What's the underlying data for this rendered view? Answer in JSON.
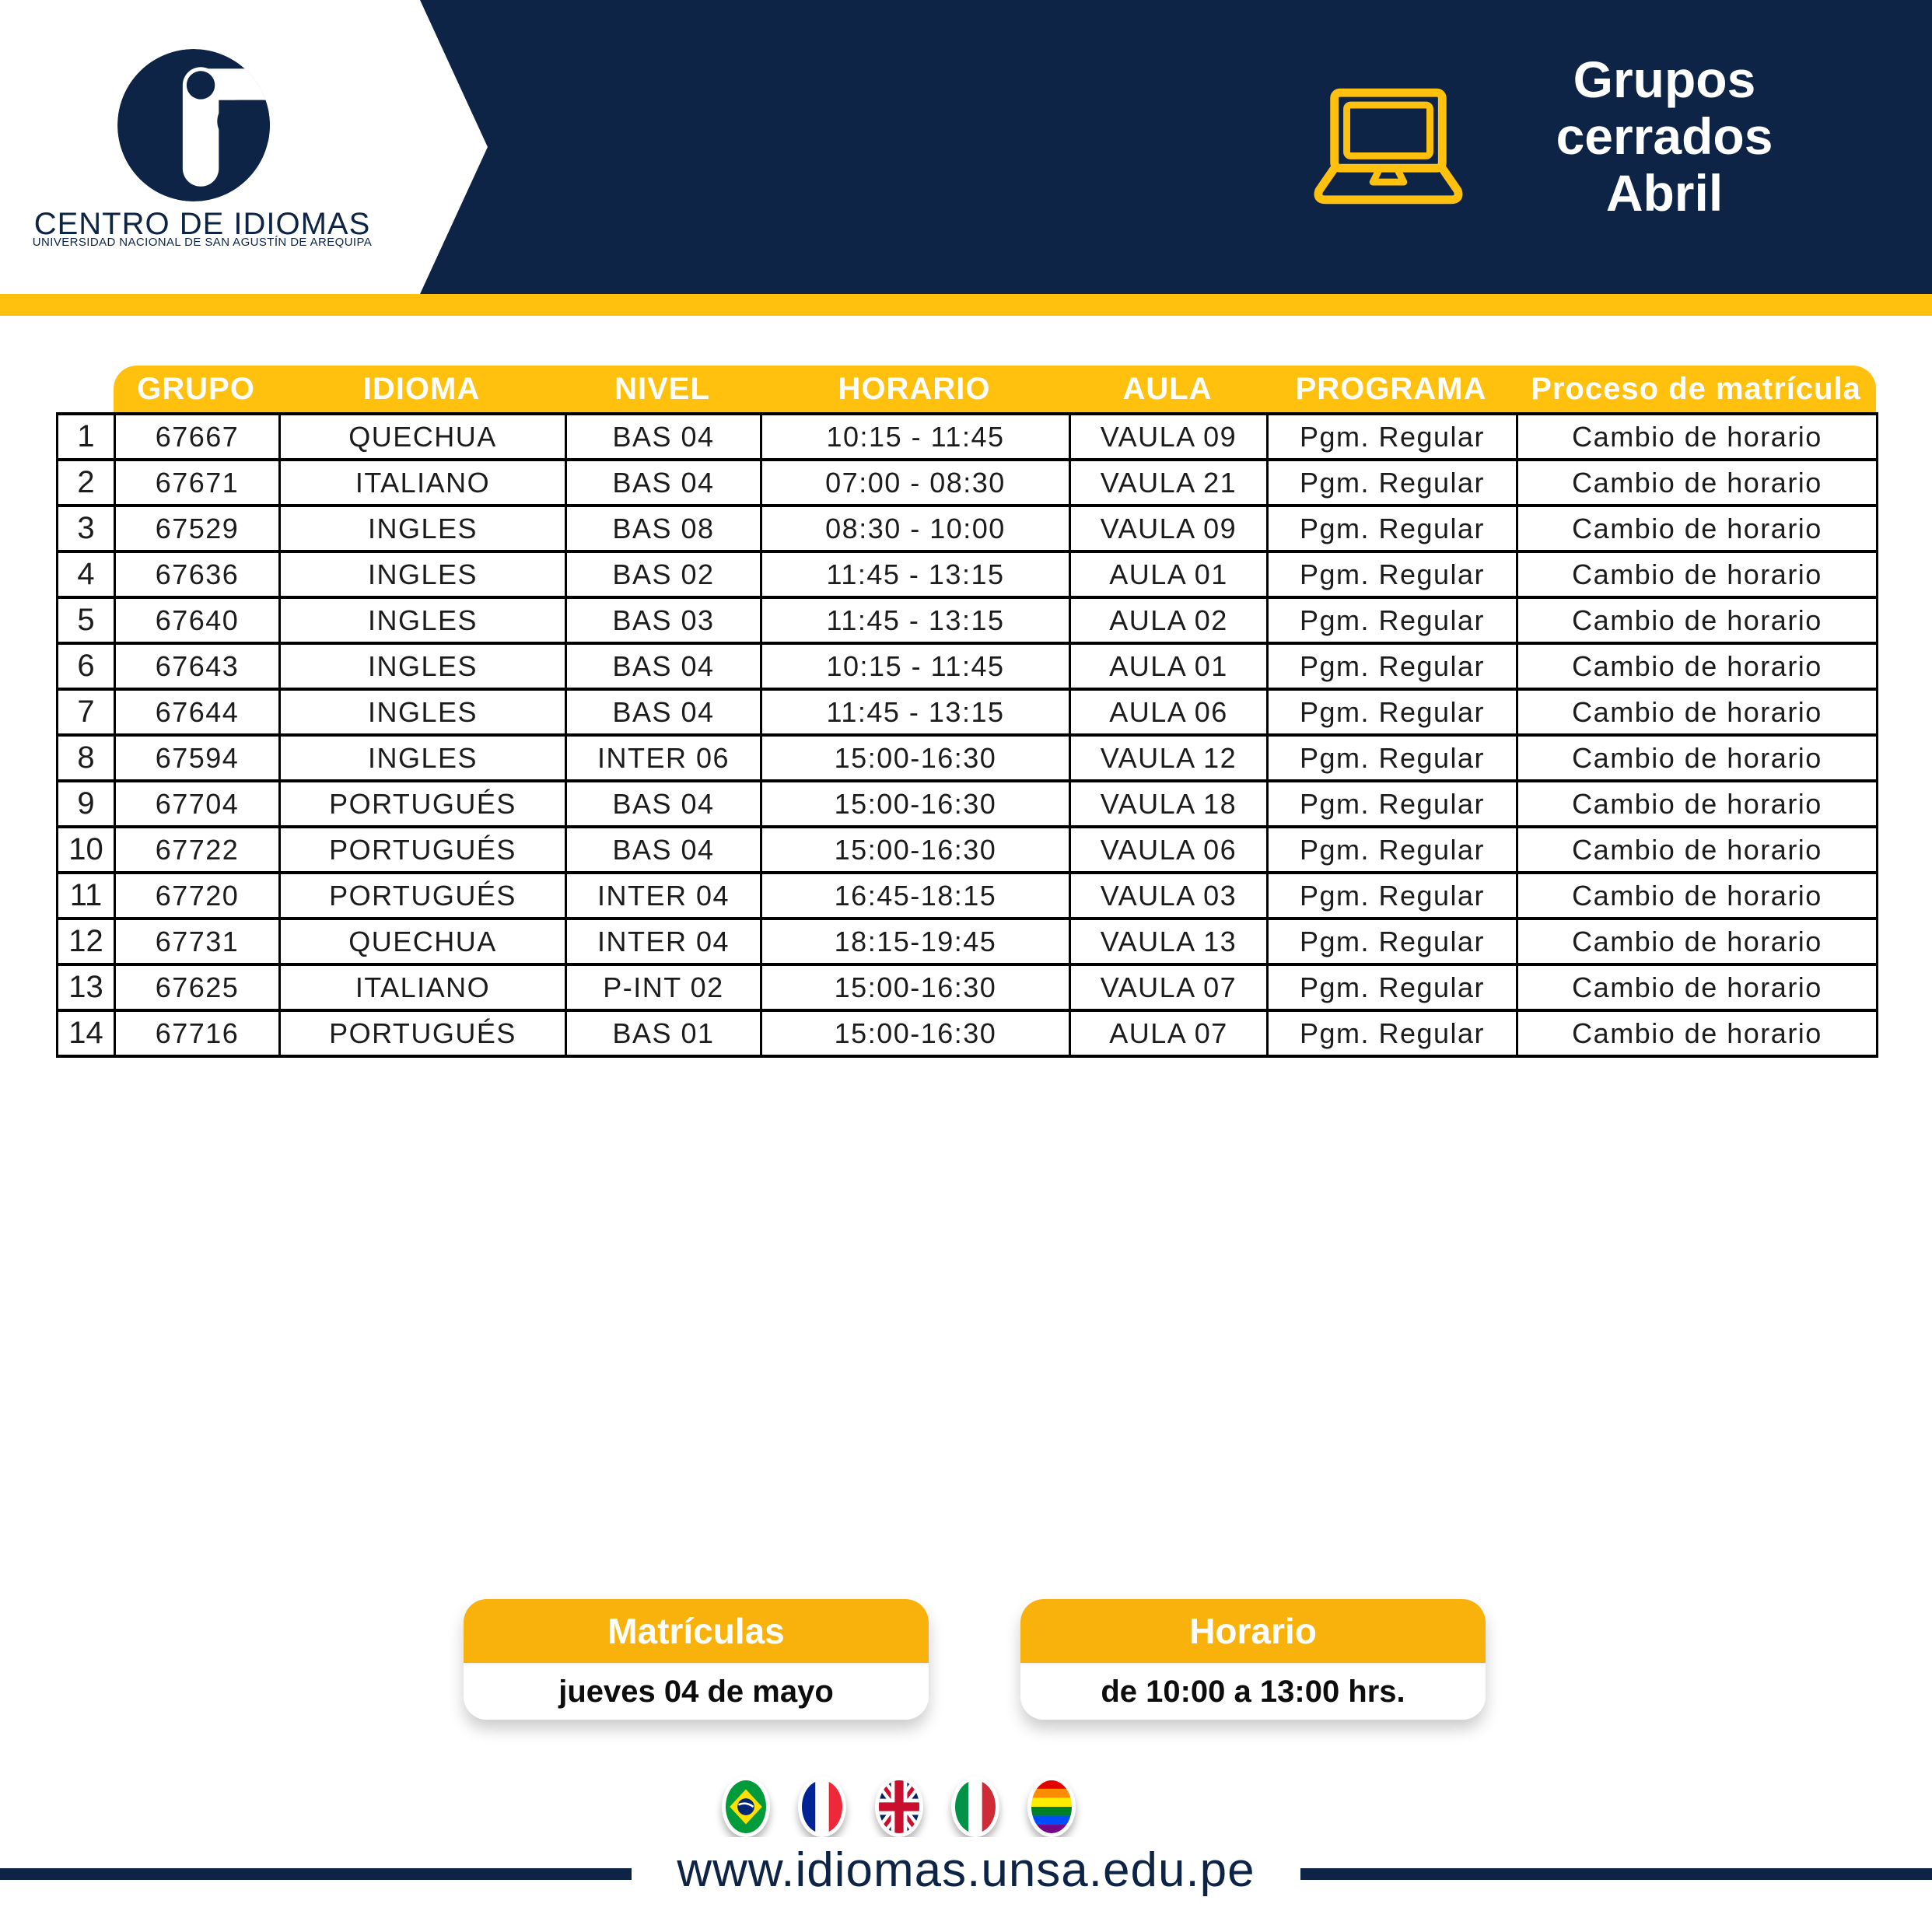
{
  "brand": {
    "name": "CENTRO DE IDIOMAS",
    "subtitle": "UNIVERSIDAD NACIONAL DE SAN AGUSTÍN DE AREQUIPA"
  },
  "header": {
    "title_lines": [
      "Grupos",
      "cerrados",
      "Abril"
    ]
  },
  "table": {
    "columns": [
      "GRUPO",
      "IDIOMA",
      "NIVEL",
      "HORARIO",
      "AULA",
      "PROGRAMA",
      "Proceso de matrícula"
    ],
    "column_keys": [
      "num",
      "grupo",
      "idioma",
      "nivel",
      "horario",
      "aula",
      "programa",
      "proceso"
    ],
    "rows": [
      [
        "1",
        "67667",
        "QUECHUA",
        "BAS 04",
        "10:15 - 11:45",
        "VAULA 09",
        "Pgm. Regular",
        "Cambio de horario"
      ],
      [
        "2",
        "67671",
        "ITALIANO",
        "BAS 04",
        "07:00 - 08:30",
        "VAULA 21",
        "Pgm. Regular",
        "Cambio de horario"
      ],
      [
        "3",
        "67529",
        "INGLES",
        "BAS 08",
        "08:30 - 10:00",
        "VAULA 09",
        "Pgm. Regular",
        "Cambio de horario"
      ],
      [
        "4",
        "67636",
        "INGLES",
        "BAS 02",
        "11:45 - 13:15",
        "AULA 01",
        "Pgm. Regular",
        "Cambio de horario"
      ],
      [
        "5",
        "67640",
        "INGLES",
        "BAS 03",
        "11:45 - 13:15",
        "AULA 02",
        "Pgm. Regular",
        "Cambio de horario"
      ],
      [
        "6",
        "67643",
        "INGLES",
        "BAS 04",
        "10:15 - 11:45",
        "AULA 01",
        "Pgm. Regular",
        "Cambio de horario"
      ],
      [
        "7",
        "67644",
        "INGLES",
        "BAS 04",
        "11:45 - 13:15",
        "AULA 06",
        "Pgm. Regular",
        "Cambio de horario"
      ],
      [
        "8",
        "67594",
        "INGLES",
        "INTER 06",
        "15:00-16:30",
        "VAULA 12",
        "Pgm. Regular",
        "Cambio de horario"
      ],
      [
        "9",
        "67704",
        "PORTUGUÉS",
        "BAS 04",
        "15:00-16:30",
        "VAULA 18",
        "Pgm. Regular",
        "Cambio de horario"
      ],
      [
        "10",
        "67722",
        "PORTUGUÉS",
        "BAS 04",
        "15:00-16:30",
        "VAULA 06",
        "Pgm. Regular",
        "Cambio de horario"
      ],
      [
        "11",
        "67720",
        "PORTUGUÉS",
        "INTER 04",
        "16:45-18:15",
        "VAULA 03",
        "Pgm. Regular",
        "Cambio de horario"
      ],
      [
        "12",
        "67731",
        "QUECHUA",
        "INTER 04",
        "18:15-19:45",
        "VAULA 13",
        "Pgm. Regular",
        "Cambio de horario"
      ],
      [
        "13",
        "67625",
        "ITALIANO",
        "P-INT 02",
        "15:00-16:30",
        "VAULA 07",
        "Pgm. Regular",
        "Cambio de horario"
      ],
      [
        "14",
        "67716",
        "PORTUGUÉS",
        "BAS 01",
        "15:00-16:30",
        "AULA 07",
        "Pgm. Regular",
        "Cambio de horario"
      ]
    ]
  },
  "badges": [
    {
      "title": "Matrículas",
      "value": "jueves 04 de mayo"
    },
    {
      "title": "Horario",
      "value": "de 10:00 a 13:00 hrs."
    }
  ],
  "footer": {
    "url": "www.idiomas.unsa.edu.pe",
    "flags": [
      "brazil-flag",
      "france-flag",
      "uk-flag",
      "italy-flag",
      "rainbow-flag"
    ]
  },
  "colors": {
    "navy": "#0e2446",
    "yellow_band": "#ffc10e",
    "badge_yellow": "#f9b10c",
    "table_border": "#000000"
  }
}
